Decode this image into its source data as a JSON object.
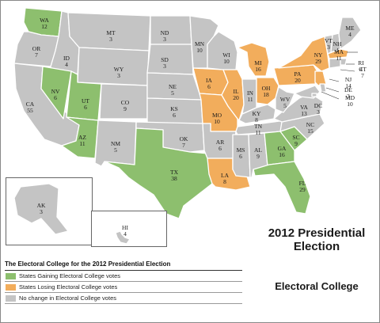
{
  "map_title": "2012 Presidential Election",
  "map_subtitle": "Electoral College",
  "legend": {
    "title": "The Electoral College for the 2012 Presidential Election",
    "items": [
      {
        "label": "States Gaining Electoral College votes",
        "color": "#8dbf6e"
      },
      {
        "label": "States Losing Electoral College votes",
        "color": "#f2ad5c"
      },
      {
        "label": "No change in Electoral College votes",
        "color": "#c4c4c4"
      }
    ]
  },
  "colors": {
    "gain": "#8dbf6e",
    "loss": "#f2ad5c",
    "none": "#c4c4c4"
  },
  "states": [
    {
      "abbr": "WA",
      "votes": "12",
      "status": "gain"
    },
    {
      "abbr": "OR",
      "votes": "7",
      "status": "none"
    },
    {
      "abbr": "CA",
      "votes": "55",
      "status": "none"
    },
    {
      "abbr": "ID",
      "votes": "4",
      "status": "none"
    },
    {
      "abbr": "NV",
      "votes": "6",
      "status": "gain"
    },
    {
      "abbr": "MT",
      "votes": "3",
      "status": "none"
    },
    {
      "abbr": "WY",
      "votes": "3",
      "status": "none"
    },
    {
      "abbr": "UT",
      "votes": "6",
      "status": "gain"
    },
    {
      "abbr": "AZ",
      "votes": "11",
      "status": "gain"
    },
    {
      "abbr": "CO",
      "votes": "9",
      "status": "none"
    },
    {
      "abbr": "NM",
      "votes": "5",
      "status": "none"
    },
    {
      "abbr": "ND",
      "votes": "3",
      "status": "none"
    },
    {
      "abbr": "SD",
      "votes": "3",
      "status": "none"
    },
    {
      "abbr": "NE",
      "votes": "5",
      "status": "none"
    },
    {
      "abbr": "KS",
      "votes": "6",
      "status": "none"
    },
    {
      "abbr": "OK",
      "votes": "7",
      "status": "none"
    },
    {
      "abbr": "TX",
      "votes": "38",
      "status": "gain"
    },
    {
      "abbr": "MN",
      "votes": "10",
      "status": "none"
    },
    {
      "abbr": "IA",
      "votes": "6",
      "status": "loss"
    },
    {
      "abbr": "MO",
      "votes": "10",
      "status": "loss"
    },
    {
      "abbr": "AR",
      "votes": "6",
      "status": "none"
    },
    {
      "abbr": "LA",
      "votes": "8",
      "status": "loss"
    },
    {
      "abbr": "WI",
      "votes": "10",
      "status": "none"
    },
    {
      "abbr": "IL",
      "votes": "20",
      "status": "loss"
    },
    {
      "abbr": "MI",
      "votes": "16",
      "status": "loss"
    },
    {
      "abbr": "IN",
      "votes": "11",
      "status": "none"
    },
    {
      "abbr": "OH",
      "votes": "18",
      "status": "loss"
    },
    {
      "abbr": "KY",
      "votes": "8",
      "status": "none"
    },
    {
      "abbr": "TN",
      "votes": "11",
      "status": "none"
    },
    {
      "abbr": "MS",
      "votes": "6",
      "status": "none"
    },
    {
      "abbr": "AL",
      "votes": "9",
      "status": "none"
    },
    {
      "abbr": "GA",
      "votes": "16",
      "status": "gain"
    },
    {
      "abbr": "FL",
      "votes": "29",
      "status": "gain"
    },
    {
      "abbr": "SC",
      "votes": "9",
      "status": "gain"
    },
    {
      "abbr": "NC",
      "votes": "15",
      "status": "none"
    },
    {
      "abbr": "VA",
      "votes": "13",
      "status": "none"
    },
    {
      "abbr": "WV",
      "votes": "5",
      "status": "none"
    },
    {
      "abbr": "PA",
      "votes": "20",
      "status": "loss"
    },
    {
      "abbr": "NY",
      "votes": "29",
      "status": "loss"
    },
    {
      "abbr": "VT",
      "votes": "3",
      "status": "none"
    },
    {
      "abbr": "NH",
      "votes": "4",
      "status": "none"
    },
    {
      "abbr": "ME",
      "votes": "4",
      "status": "none"
    },
    {
      "abbr": "MA",
      "votes": "11",
      "status": "loss"
    },
    {
      "abbr": "RI",
      "votes": "4",
      "status": "none"
    },
    {
      "abbr": "CT",
      "votes": "7",
      "status": "none"
    },
    {
      "abbr": "NJ",
      "votes": "14",
      "status": "loss"
    },
    {
      "abbr": "DE",
      "votes": "3",
      "status": "none"
    },
    {
      "abbr": "MD",
      "votes": "10",
      "status": "none"
    },
    {
      "abbr": "DC",
      "votes": "3",
      "status": "none"
    },
    {
      "abbr": "AK",
      "votes": "3",
      "status": "none"
    },
    {
      "abbr": "HI",
      "votes": "4",
      "status": "none"
    }
  ]
}
